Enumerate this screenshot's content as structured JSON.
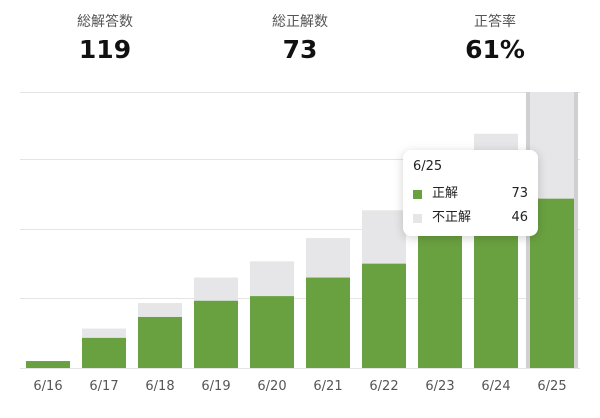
{
  "stats": [
    {
      "label": "総解答数",
      "value": "119"
    },
    {
      "label": "総正解数",
      "value": "73"
    },
    {
      "label": "正答率",
      "value": "61%"
    }
  ],
  "colors": {
    "correct": "#6aa140",
    "incorrect": "#e6e6e8",
    "grid": "#e4e4e4",
    "highlight": "#d0d0d3"
  },
  "chart_data": {
    "type": "bar",
    "stacked": true,
    "categories": [
      "6/16",
      "6/17",
      "6/18",
      "6/19",
      "6/20",
      "6/21",
      "6/22",
      "6/23",
      "6/24",
      "6/25"
    ],
    "series": [
      {
        "name": "正解",
        "values": [
          3,
          13,
          22,
          29,
          31,
          39,
          45,
          59,
          67,
          73
        ]
      },
      {
        "name": "不正解",
        "values": [
          0,
          4,
          6,
          10,
          15,
          17,
          23,
          28,
          34,
          46
        ]
      }
    ],
    "ylim": [
      0,
      119
    ],
    "grid": true,
    "highlighted_category": "6/25"
  },
  "tooltip": {
    "title": "6/25",
    "rows": [
      {
        "name": "正解",
        "value": "73"
      },
      {
        "name": "不正解",
        "value": "46"
      }
    ]
  }
}
